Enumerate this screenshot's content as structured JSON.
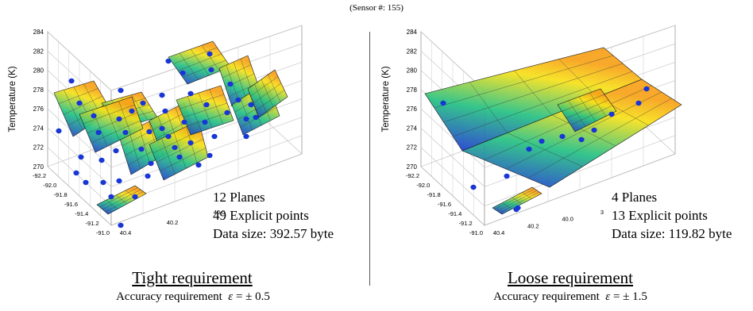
{
  "header": "(Sensor #: 155)",
  "chart_data": [
    {
      "type": "surface3d",
      "zlabel": "Temperature (K)",
      "zticks": [
        "270",
        "272",
        "274",
        "276",
        "278",
        "280",
        "282",
        "284"
      ],
      "zlim": [
        270,
        284
      ],
      "yticks": [
        "-92.2",
        "-92.0",
        "-91.8",
        "-91.6",
        "-91.4",
        "-91.2",
        "-91.0"
      ],
      "xticks": [
        "40.4",
        "40.2",
        "40.0"
      ],
      "stats": [
        "12 Planes",
        "49 Explicit points",
        "Data size: 392.57 byte"
      ],
      "requirement_title": "Tight requirement",
      "accuracy_prefix": "Accuracy requirement",
      "accuracy_symbol": "ε",
      "accuracy_value": "= ± 0.5",
      "planes": 12,
      "explicit_points": 49,
      "colors": {
        "low": "#1f2fd8",
        "mid": "#26c184",
        "high": "#f7e11a",
        "top": "#f7a21a",
        "point": "#1835d6"
      }
    },
    {
      "type": "surface3d",
      "zlabel": "Temperature (K)",
      "zticks": [
        "270",
        "272",
        "274",
        "276",
        "278",
        "280",
        "282",
        "284"
      ],
      "zlim": [
        270,
        284
      ],
      "yticks": [
        "-92.2",
        "-92.0",
        "-91.8",
        "-91.6",
        "-91.4",
        "-91.2",
        "-91.0"
      ],
      "xticks": [
        "40.4",
        "40.2",
        "40.0",
        "3"
      ],
      "stats": [
        "4 Planes",
        "13 Explicit points",
        "Data size: 119.82 byte"
      ],
      "requirement_title": "Loose requirement",
      "accuracy_prefix": "Accuracy requirement",
      "accuracy_symbol": "ε",
      "accuracy_value": "= ± 1.5",
      "planes": 4,
      "explicit_points": 13,
      "colors": {
        "low": "#1f2fd8",
        "mid": "#26c184",
        "high": "#f7e11a",
        "top": "#f7a21a",
        "point": "#1835d6"
      }
    }
  ]
}
